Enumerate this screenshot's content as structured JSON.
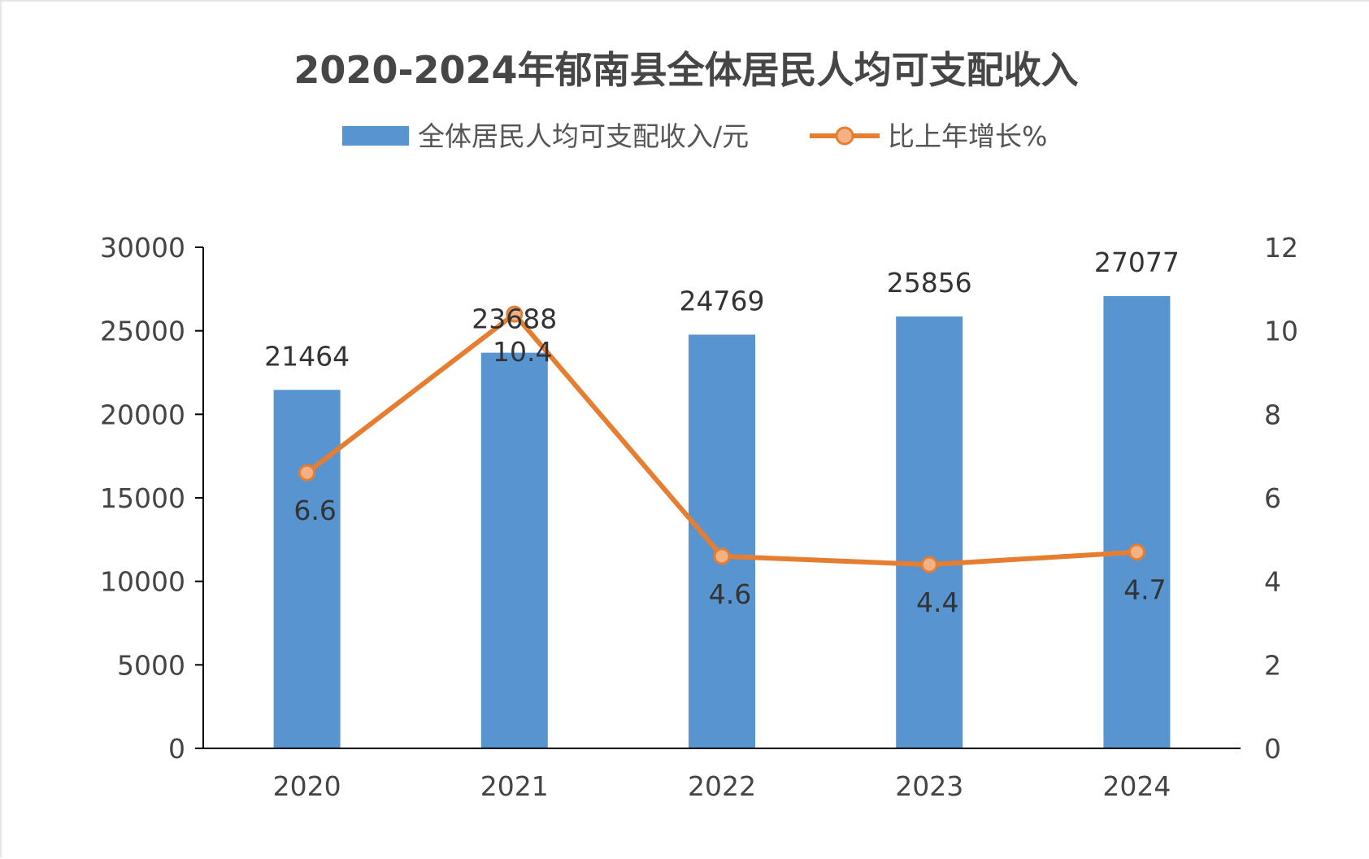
{
  "colors": {
    "bar": "#5794d0",
    "line": "#e67e32",
    "marker_fill": "#f4b183",
    "axis": "#000000",
    "text": "#444444"
  },
  "chart_data": {
    "type": "bar",
    "title": "2020-2024年郁南县全体居民人均可支配收入",
    "categories": [
      "2020",
      "2021",
      "2022",
      "2023",
      "2024"
    ],
    "series": [
      {
        "name": "全体居民人均可支配收入/元",
        "type": "bar",
        "axis": "left",
        "values": [
          21464,
          23688,
          24769,
          25856,
          27077
        ]
      },
      {
        "name": "比上年增长%",
        "type": "line",
        "axis": "right",
        "values": [
          6.6,
          10.4,
          4.6,
          4.4,
          4.7
        ]
      }
    ],
    "y_left": {
      "min": 0,
      "max": 30000,
      "ticks": [
        0,
        5000,
        10000,
        15000,
        20000,
        25000,
        30000
      ]
    },
    "y_right": {
      "min": 0,
      "max": 12,
      "ticks": [
        0,
        2,
        4,
        6,
        8,
        10,
        12
      ]
    },
    "legend_position": "top-center",
    "grid": false
  }
}
